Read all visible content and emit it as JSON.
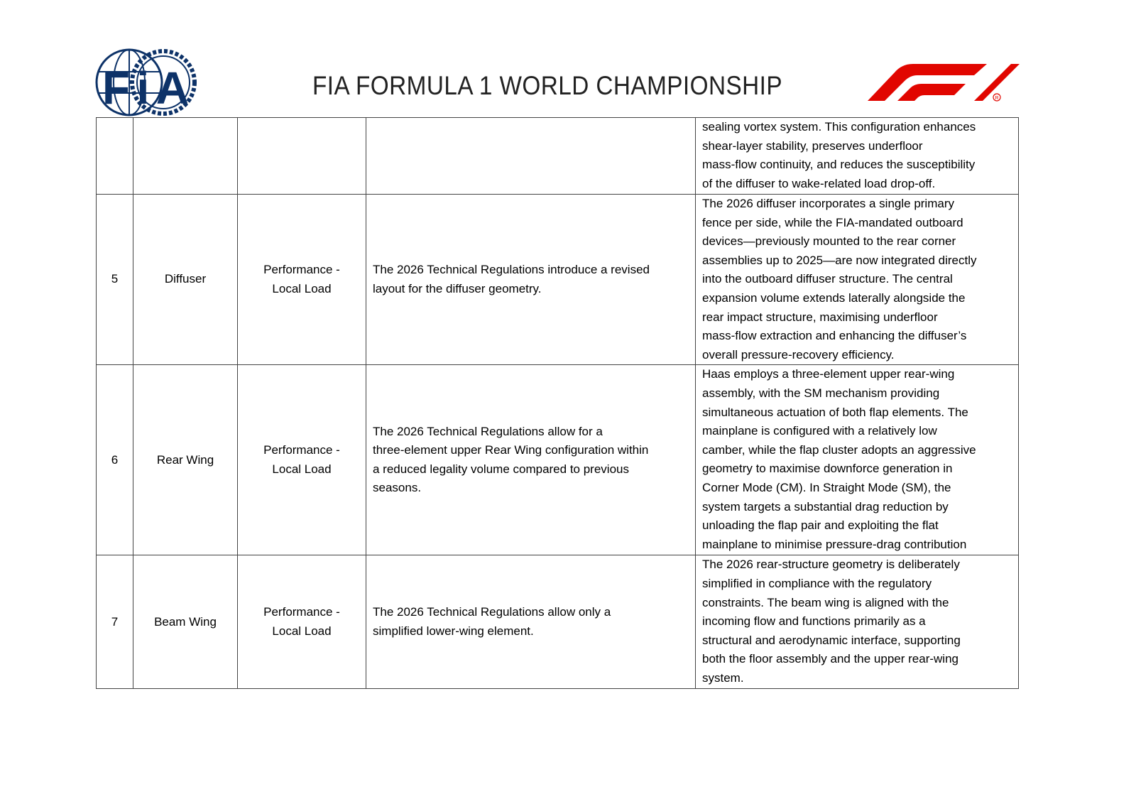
{
  "header": {
    "title": "FIA FORMULA 1 WORLD CHAMPIONSHIP",
    "left_logo": "FIA",
    "right_logo": "F1",
    "colors": {
      "fia_blue": "#0d3268",
      "f1_red": "#e10600"
    }
  },
  "rows": [
    {
      "number": "",
      "component": "",
      "category": [],
      "regulation": [],
      "description": [
        "sealing vortex system. This configuration enhances",
        "shear-layer stability, preserves underfloor",
        "mass-flow continuity, and reduces the susceptibility",
        "of the diffuser to wake-related load drop-off."
      ]
    },
    {
      "number": "5",
      "component": "Diffuser",
      "category": [
        "Performance -",
        "Local Load"
      ],
      "regulation": [
        "The 2026 Technical Regulations introduce a revised",
        "layout for the diffuser geometry."
      ],
      "description": [
        "The 2026 diffuser incorporates a single primary",
        "fence per side, while the FIA-mandated outboard",
        "devices—previously mounted to the rear corner",
        "assemblies up to 2025—are now integrated directly",
        "into the outboard diffuser structure. The central",
        "expansion volume extends laterally alongside the",
        "rear impact structure, maximising underfloor",
        "mass-flow extraction and enhancing the diffuser’s",
        "overall pressure-recovery efficiency."
      ]
    },
    {
      "number": "6",
      "component": "Rear Wing",
      "category": [
        "Performance -",
        "Local Load"
      ],
      "regulation": [
        "The 2026 Technical Regulations allow for a",
        "three-element upper Rear Wing configuration within",
        "a reduced legality volume compared to previous",
        "seasons."
      ],
      "description": [
        "Haas employs a three-element upper rear-wing",
        "assembly, with the SM mechanism providing",
        "simultaneous actuation of both flap elements. The",
        "mainplane is configured with a relatively low",
        "camber, while the flap cluster adopts an aggressive",
        "geometry to maximise downforce generation in",
        "Corner Mode (CM). In Straight Mode (SM), the",
        "system targets a substantial drag reduction by",
        "unloading the flap pair and exploiting the flat",
        "mainplane to minimise pressure-drag contribution"
      ]
    },
    {
      "number": "7",
      "component": "Beam Wing",
      "category": [
        "Performance -",
        "Local Load"
      ],
      "regulation": [
        "The 2026 Technical Regulations allow only a",
        "simplified lower-wing element."
      ],
      "description": [
        "The 2026 rear-structure geometry is deliberately",
        "simplified in compliance with the regulatory",
        "constraints. The beam wing is aligned with the",
        "incoming flow and functions primarily as a",
        "structural and aerodynamic interface, supporting",
        "both the floor assembly and the upper rear-wing",
        "system."
      ]
    }
  ]
}
